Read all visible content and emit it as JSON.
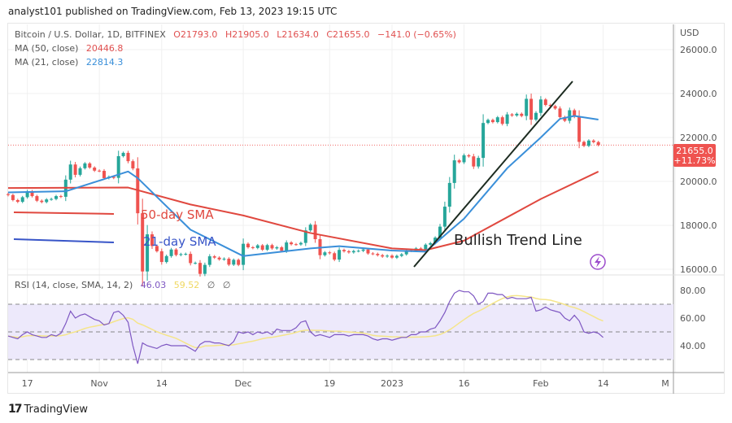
{
  "header": {
    "published": "analyst101 published on TradingView.com, Feb 13, 2023 19:15 UTC"
  },
  "legend": {
    "symbol": "Bitcoin / U.S. Dollar, 1D, BITFINEX",
    "open": "O21793.0",
    "high": "H21905.0",
    "low": "L21634.0",
    "close": "C21655.0",
    "change": "−141.0 (−0.65%)",
    "ma50_label": "MA (50, close)",
    "ma50_value": "20446.8",
    "ma21_label": "MA (21, close)",
    "ma21_value": "22814.3",
    "rsi_label": "RSI (14, close, SMA, 14, 2)",
    "rsi_value": "46.03",
    "rsi_sma_value": "59.52",
    "rsi_extra1": "∅",
    "rsi_extra2": "∅"
  },
  "annotations": {
    "sma50": "50-day SMA",
    "sma21": "21-day SMA",
    "trend": "Bullish Trend Line"
  },
  "branding": {
    "logo": "TradingView"
  },
  "chart_data": {
    "type": "candlestick",
    "currency": "USD",
    "first_date": "2022-10-13",
    "price_ylim": [
      16000,
      26000
    ],
    "price_ticks": [
      "26000.0",
      "24000.0",
      "22000.0",
      "20000.0",
      "18000.0",
      "16000.0"
    ],
    "last_price": "21655.0",
    "last_change": "+11.73%",
    "x_ticks": [
      "17",
      "Nov",
      "14",
      "Dec",
      "19",
      "2023",
      "16",
      "Feb",
      "14",
      "M"
    ],
    "closes": [
      19380,
      19150,
      19070,
      19280,
      19550,
      19330,
      19120,
      19060,
      19180,
      19200,
      19330,
      19300,
      20080,
      20770,
      20300,
      20600,
      20820,
      20630,
      20490,
      20480,
      20150,
      20210,
      20160,
      21150,
      21300,
      20920,
      20590,
      18550,
      15900,
      17590,
      17060,
      16820,
      16330,
      16600,
      16900,
      16650,
      16690,
      16700,
      16280,
      16290,
      15790,
      16200,
      16590,
      16530,
      16450,
      16480,
      16210,
      16430,
      16200,
      17160,
      17000,
      16970,
      17090,
      16890,
      17100,
      16950,
      17000,
      16840,
      17220,
      17140,
      17130,
      17200,
      17770,
      18030,
      17370,
      16640,
      16770,
      16730,
      16440,
      16880,
      16820,
      16770,
      16830,
      16840,
      16900,
      16720,
      16700,
      16640,
      16580,
      16620,
      16530,
      16610,
      16680,
      16860,
      16840,
      16950,
      16910,
      17120,
      17190,
      17440,
      17940,
      18850,
      19930,
      20960,
      20870,
      21190,
      21140,
      20680,
      21070,
      22660,
      22800,
      22700,
      22920,
      22620,
      23050,
      23000,
      23080,
      22980,
      23760,
      22810,
      23120,
      23730,
      23480,
      23430,
      23320,
      22930,
      22760,
      23240,
      22950,
      21800,
      21620,
      21860,
      21790,
      21655
    ],
    "ma50": [
      [
        "2022-10-13",
        19700
      ],
      [
        "2022-11-07",
        19720
      ],
      [
        "2022-11-20",
        18950
      ],
      [
        "2022-12-01",
        18450
      ],
      [
        "2022-12-15",
        17650
      ],
      [
        "2023-01-01",
        16950
      ],
      [
        "2023-01-08",
        16870
      ],
      [
        "2023-01-16",
        17300
      ],
      [
        "2023-02-01",
        19200
      ],
      [
        "2023-02-13",
        20447
      ]
    ],
    "ma21": [
      [
        "2022-10-13",
        19500
      ],
      [
        "2022-10-25",
        19550
      ],
      [
        "2022-11-07",
        20450
      ],
      [
        "2022-11-09",
        20150
      ],
      [
        "2022-11-20",
        17800
      ],
      [
        "2022-12-01",
        16600
      ],
      [
        "2022-12-15",
        16950
      ],
      [
        "2022-12-21",
        17050
      ],
      [
        "2023-01-01",
        16850
      ],
      [
        "2023-01-08",
        16800
      ],
      [
        "2023-01-16",
        18300
      ],
      [
        "2023-01-25",
        20600
      ],
      [
        "2023-02-01",
        22000
      ],
      [
        "2023-02-05",
        22850
      ],
      [
        "2023-02-08",
        22980
      ],
      [
        "2023-02-13",
        22814
      ]
    ],
    "rsi_ylim": [
      20,
      90
    ],
    "rsi_ticks": [
      "80.00",
      "60.00",
      "40.00"
    ],
    "rsi_bands": [
      30,
      50,
      70
    ],
    "rsi": [
      47,
      46,
      45,
      48,
      50,
      48,
      47,
      46,
      46,
      48,
      47,
      49,
      56,
      65,
      60,
      62,
      63,
      61,
      59,
      58,
      55,
      56,
      64,
      65,
      62,
      57,
      40,
      27,
      42,
      40,
      39,
      38,
      40,
      41,
      40,
      40,
      40,
      40,
      38,
      36,
      41,
      43,
      43,
      42,
      42,
      41,
      40,
      43,
      50,
      49,
      50,
      48,
      50,
      49,
      50,
      48,
      52,
      51,
      51,
      51,
      53,
      57,
      58,
      50,
      47,
      48,
      47,
      46,
      48,
      48,
      48,
      47,
      48,
      48,
      48,
      47,
      45,
      44,
      45,
      45,
      44,
      45,
      46,
      46,
      48,
      48,
      50,
      50,
      52,
      53,
      58,
      64,
      72,
      78,
      80,
      79,
      79,
      76,
      70,
      72,
      78,
      78,
      77,
      77,
      74,
      75,
      74,
      74,
      74,
      75,
      65,
      66,
      68,
      66,
      65,
      64,
      60,
      58,
      62,
      58,
      50,
      49,
      50,
      49,
      46
    ],
    "colors": {
      "up": "#26a69a",
      "down": "#ef5350",
      "ma50": "#e0483f",
      "ma21": "#3a8fd9",
      "rsi": "#7e57c2",
      "rsi_sma": "#f5e58a",
      "band": "#ede9fb",
      "trend": "#1c2b20"
    }
  }
}
